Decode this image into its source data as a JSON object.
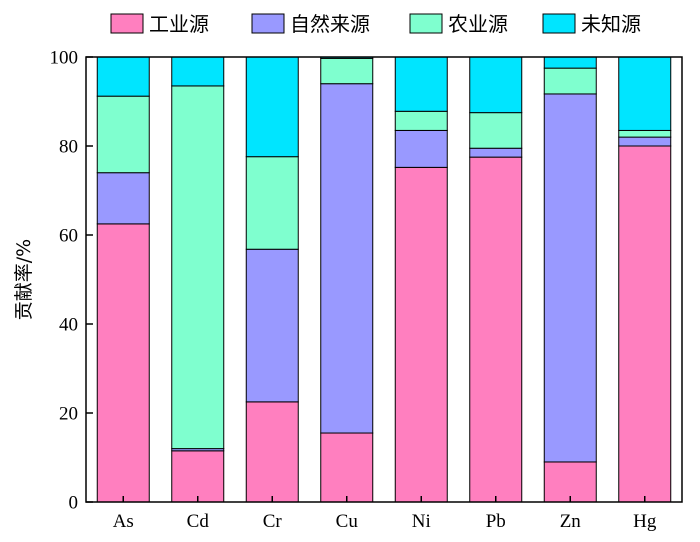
{
  "chart_data": {
    "type": "bar",
    "stacked": true,
    "categories": [
      "As",
      "Cd",
      "Cr",
      "Cu",
      "Ni",
      "Pb",
      "Zn",
      "Hg"
    ],
    "series": [
      {
        "name": "工业源",
        "color": "#ff7fbf",
        "values": [
          62.5,
          11.5,
          22.5,
          15.5,
          75.2,
          77.5,
          9.0,
          80.0
        ]
      },
      {
        "name": "自然来源",
        "color": "#9999ff",
        "values": [
          11.5,
          0.5,
          34.3,
          78.5,
          8.3,
          2.0,
          82.7,
          2.0
        ]
      },
      {
        "name": "农业源",
        "color": "#7fffcf",
        "values": [
          17.2,
          81.5,
          20.8,
          5.7,
          4.3,
          8.0,
          5.8,
          1.5
        ]
      },
      {
        "name": "未知源",
        "color": "#00e5ff",
        "values": [
          8.8,
          6.5,
          22.4,
          0.3,
          12.2,
          12.5,
          2.5,
          16.5
        ]
      }
    ],
    "ylabel": "贡献率/%",
    "ylim": [
      0,
      100
    ],
    "yticks": [
      0,
      20,
      40,
      60,
      80,
      100
    ],
    "grid": false,
    "legend_position": "top"
  }
}
